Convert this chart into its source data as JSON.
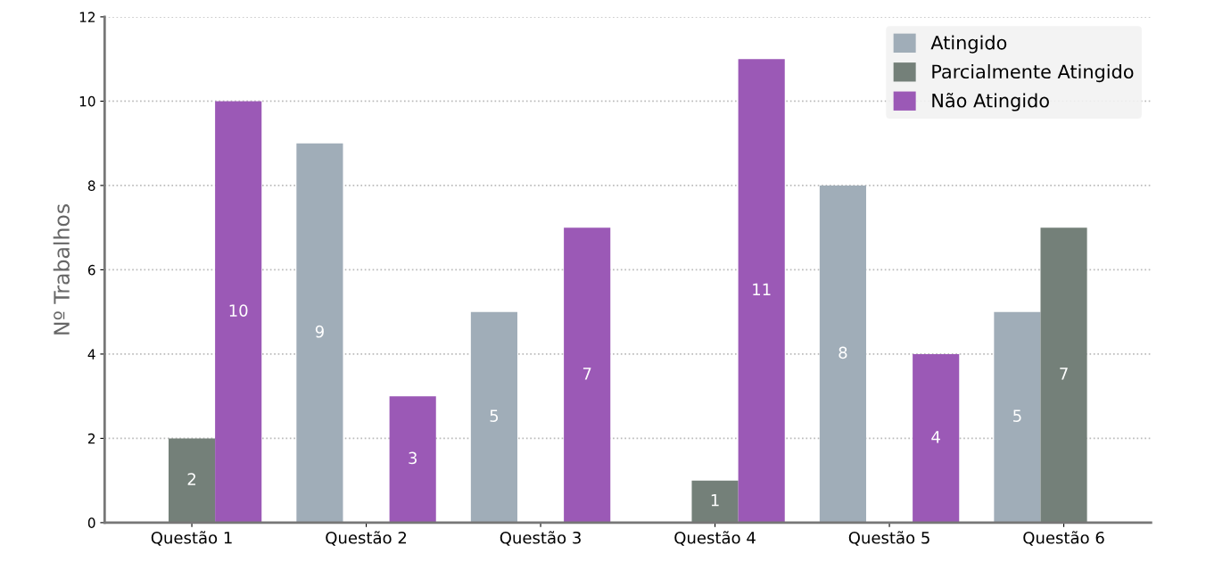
{
  "chart_data": {
    "type": "bar",
    "ylabel": "Nº Trabalhos",
    "categories": [
      "Questão 1",
      "Questão 2",
      "Questão 3",
      "Questão 4",
      "Questão 5",
      "Questão 6"
    ],
    "series": [
      {
        "name": "Atingido",
        "color": "#a0adb8",
        "values": [
          0,
          9,
          5,
          0,
          8,
          5
        ],
        "value_labels": [
          null,
          "9",
          "5",
          null,
          "8",
          "5"
        ]
      },
      {
        "name": "Parcialmente Atingido",
        "color": "#748079",
        "values": [
          2,
          0,
          0,
          1,
          0,
          7
        ],
        "value_labels": [
          "2",
          null,
          null,
          "1",
          null,
          "7"
        ]
      },
      {
        "name": "Não Atingido",
        "color": "#9b59b6",
        "values": [
          10,
          3,
          7,
          11,
          4,
          0
        ],
        "value_labels": [
          "10",
          "3",
          "7",
          "11",
          "4",
          null
        ]
      }
    ],
    "ylim": [
      0,
      12
    ],
    "yticks": [
      0,
      2,
      4,
      6,
      8,
      10,
      12
    ],
    "grid": "y",
    "legend": "top right"
  }
}
